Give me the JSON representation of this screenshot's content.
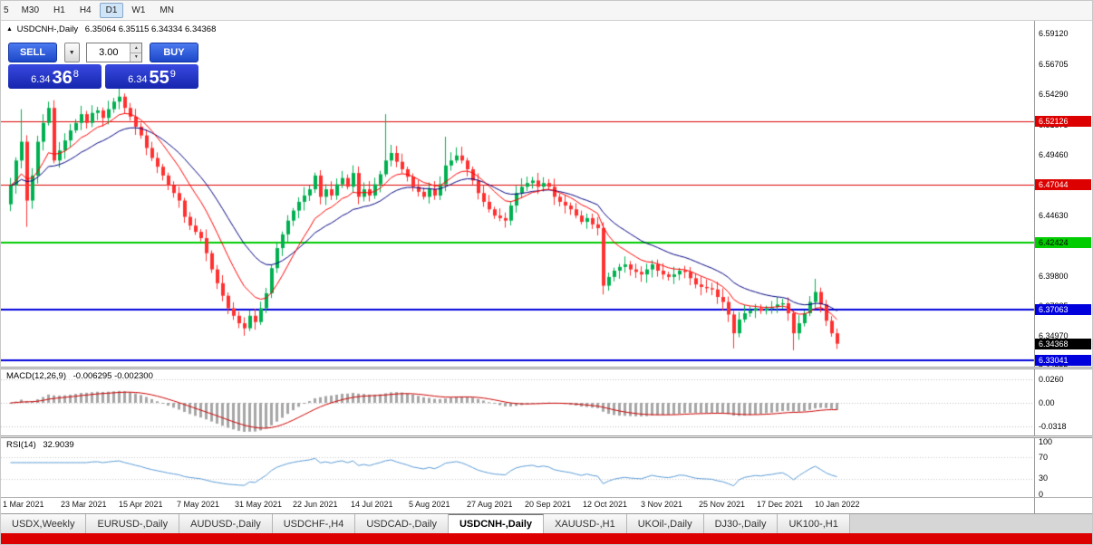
{
  "toolbar": {
    "timeframes": [
      "5",
      "M30",
      "H1",
      "H4",
      "D1",
      "W1",
      "MN"
    ],
    "active": "D1"
  },
  "chart": {
    "title": "USDCNH-,Daily",
    "ohlc": "6.35064 6.35115 6.34334 6.34368"
  },
  "trade_panel": {
    "sell_label": "SELL",
    "buy_label": "BUY",
    "volume": "3.00",
    "sell_price": {
      "base": "6.34",
      "pips": "36",
      "pipette": "8"
    },
    "buy_price": {
      "base": "6.34",
      "pips": "55",
      "pipette": "9"
    }
  },
  "chart_data": {
    "type": "candlestick",
    "symbol": "USDCNH-",
    "timeframe": "Daily",
    "price_range": [
      6.3268,
      6.5936
    ],
    "y_axis_ticks": [
      {
        "v": 6.5912,
        "label": "6.59120"
      },
      {
        "v": 6.56705,
        "label": "6.56705"
      },
      {
        "v": 6.5429,
        "label": "6.54290"
      },
      {
        "v": 6.51875,
        "label": "6.51875"
      },
      {
        "v": 6.4946,
        "label": "6.49460"
      },
      {
        "v": 6.47045,
        "label": "6.47045"
      },
      {
        "v": 6.4463,
        "label": "6.44630"
      },
      {
        "v": 6.42215,
        "label": "6.42215"
      },
      {
        "v": 6.398,
        "label": "6.39800"
      },
      {
        "v": 6.37385,
        "label": "6.37385"
      },
      {
        "v": 6.3497,
        "label": "6.34970"
      },
      {
        "v": 6.32555,
        "label": "6.32555"
      }
    ],
    "x_labels": [
      "1 Mar 2021",
      "23 Mar 2021",
      "15 Apr 2021",
      "7 May 2021",
      "31 May 2021",
      "22 Jun 2021",
      "14 Jul 2021",
      "5 Aug 2021",
      "27 Aug 2021",
      "20 Sep 2021",
      "12 Oct 2021",
      "3 Nov 2021",
      "25 Nov 2021",
      "17 Dec 2021",
      "10 Jan 2022"
    ],
    "horizontal_lines": [
      {
        "price": 6.52126,
        "label": "6.52126",
        "color": "#dd0000",
        "text": "#ffffff",
        "width": 1
      },
      {
        "price": 6.47044,
        "label": "6.47044",
        "color": "#dd0000",
        "text": "#ffffff",
        "width": 1
      },
      {
        "price": 6.42424,
        "label": "6.42424",
        "color": "#00cc00",
        "text": "#000000",
        "width": 2
      },
      {
        "price": 6.37063,
        "label": "6.37063",
        "color": "#0000dd",
        "text": "#ffffff",
        "width": 2
      },
      {
        "price": 6.33041,
        "label": "6.33041",
        "color": "#0000dd",
        "text": "#ffffff",
        "width": 2
      }
    ],
    "current_price": {
      "v": 6.34368,
      "label": "6.34368"
    },
    "first_open": 6.455,
    "closes": [
      6.47,
      6.49,
      6.505,
      6.458,
      6.478,
      6.505,
      6.52,
      6.532,
      6.49,
      6.498,
      6.506,
      6.514,
      6.52,
      6.527,
      6.52,
      6.528,
      6.53,
      6.524,
      6.531,
      6.537,
      6.541,
      6.532,
      6.525,
      6.517,
      6.51,
      6.5,
      6.492,
      6.485,
      6.478,
      6.47,
      6.464,
      6.458,
      6.445,
      6.438,
      6.433,
      6.428,
      6.416,
      6.403,
      6.392,
      6.382,
      6.372,
      6.366,
      6.36,
      6.356,
      6.366,
      6.361,
      6.372,
      6.384,
      6.404,
      6.42,
      6.431,
      6.442,
      6.45,
      6.457,
      6.462,
      6.467,
      6.478,
      6.461,
      6.467,
      6.462,
      6.471,
      6.476,
      6.469,
      6.48,
      6.461,
      6.467,
      6.462,
      6.471,
      6.479,
      6.49,
      6.496,
      6.489,
      6.483,
      6.477,
      6.469,
      6.465,
      6.461,
      6.467,
      6.462,
      6.471,
      6.486,
      6.49,
      6.494,
      6.49,
      6.483,
      6.474,
      6.464,
      6.457,
      6.451,
      6.446,
      6.444,
      6.442,
      6.454,
      6.464,
      6.469,
      6.472,
      6.474,
      6.469,
      6.472,
      6.469,
      6.461,
      6.457,
      6.454,
      6.451,
      6.446,
      6.441,
      6.444,
      6.439,
      6.436,
      6.39,
      6.397,
      6.402,
      6.405,
      6.407,
      6.403,
      6.401,
      6.399,
      6.403,
      6.407,
      6.402,
      6.399,
      6.397,
      6.399,
      6.402,
      6.401,
      6.396,
      6.391,
      6.389,
      6.388,
      6.387,
      6.381,
      6.377,
      6.367,
      6.352,
      6.363,
      6.368,
      6.37,
      6.372,
      6.37,
      6.372,
      6.373,
      6.375,
      6.376,
      6.368,
      6.352,
      6.36,
      6.368,
      6.377,
      6.385,
      6.375,
      6.362,
      6.352,
      6.3437
    ],
    "wick_overrides": {
      "2": {
        "h": 6.531
      },
      "3": {
        "l": 6.437
      },
      "7": {
        "h": 6.537
      },
      "20": {
        "h": 6.548
      },
      "69": {
        "h": 6.527
      },
      "80": {
        "h": 6.509
      },
      "109": {
        "l": 6.383
      },
      "133": {
        "l": 6.34
      },
      "144": {
        "l": 6.3385
      },
      "148": {
        "h": 6.3955
      },
      "152": {
        "l": 6.3395
      }
    },
    "indicators": {
      "macd": {
        "name": "MACD(12,26,9)",
        "values_text": "-0.006295 -0.002300",
        "fast": 12,
        "slow": 26,
        "signal": 9,
        "axis_labels": [
          "0.0260",
          "0.00",
          "-0.0318"
        ]
      },
      "rsi": {
        "name": "RSI(14)",
        "value_text": "32.9039",
        "period": 14,
        "axis_labels": [
          "100",
          "70",
          "30",
          "0"
        ],
        "levels": [
          70,
          30
        ]
      }
    }
  },
  "tabs": {
    "active_index": 5,
    "items": [
      "USDX,Weekly",
      "EURUSD-,Daily",
      "AUDUSD-,Daily",
      "USDCHF-,H4",
      "USDCAD-,Daily",
      "USDCNH-,Daily",
      "XAUUSD-,H1",
      "UKOil-,Daily",
      "DJ30-,Daily",
      "UK100-,H1"
    ]
  },
  "colors": {
    "up": "#00b050",
    "down": "#ff3030",
    "ma_fast": "#ff0000",
    "ma_slow": "#000080",
    "macd_hist": "#a6a6a6",
    "macd_signal": "#cc0000",
    "rsi_line": "#5b9bd5",
    "button_blue_light": "#4a79f0",
    "button_blue_dark": "#1d47c8",
    "quote_blue_light": "#3849e0",
    "quote_blue_dark": "#1726ad",
    "current_price_box": "#000000",
    "alert_bar": "#dd0000"
  }
}
